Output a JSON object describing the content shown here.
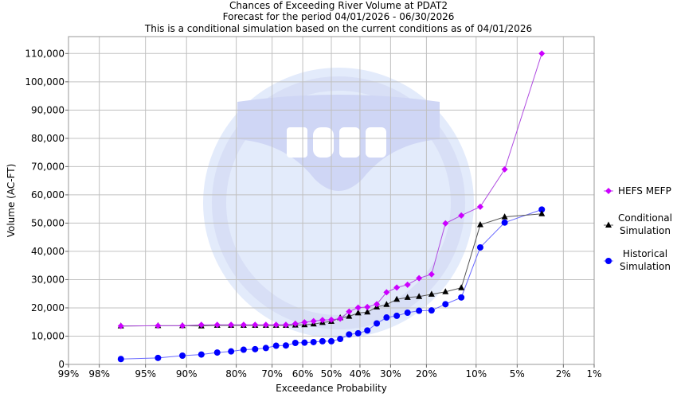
{
  "chart_data": {
    "type": "line",
    "title": "Chances of Exceeding River Volume at PDAT2",
    "subtitle": "Forecast for the period 04/01/2026 - 06/30/2026",
    "subtitle2": "This is a conditional simulation based on the current conditions as of 04/01/2026",
    "xlabel": "Exceedance Probability",
    "ylabel": "Volume (AC-FT)",
    "x_scale": "normal-probability",
    "x_ticks": [
      99,
      98,
      95,
      90,
      80,
      70,
      60,
      50,
      40,
      30,
      20,
      10,
      5,
      2,
      1
    ],
    "x_tick_labels": [
      "99%",
      "98%",
      "95%",
      "90%",
      "80%",
      "70%",
      "60%",
      "50%",
      "40%",
      "30%",
      "20%",
      "10%",
      "5%",
      "2%",
      "1%"
    ],
    "ylim": [
      0,
      116000
    ],
    "y_ticks": [
      0,
      10000,
      20000,
      30000,
      40000,
      50000,
      60000,
      70000,
      80000,
      90000,
      100000,
      110000
    ],
    "y_tick_labels": [
      "0",
      "10,000",
      "20,000",
      "30,000",
      "40,000",
      "50,000",
      "60,000",
      "70,000",
      "80,000",
      "90,000",
      "100,000",
      "110,000"
    ],
    "grid": true,
    "legend_position": "right",
    "x": [
      96.875,
      93.75,
      90.625,
      87.5,
      84.375,
      81.25,
      78.125,
      75,
      71.875,
      68.75,
      65.625,
      62.5,
      59.375,
      56.25,
      53.125,
      50,
      46.875,
      43.75,
      40.625,
      37.5,
      34.375,
      31.25,
      28.125,
      25,
      21.875,
      18.75,
      15.625,
      12.5,
      9.375,
      6.25,
      3.125
    ],
    "series": [
      {
        "name": "HEFS MEFP",
        "color": "#cc00ff",
        "line_color": "#b04ce0",
        "marker": "diamond",
        "values": [
          13600,
          13700,
          13700,
          14000,
          14000,
          14000,
          14000,
          14000,
          14000,
          14000,
          14000,
          14400,
          14900,
          15300,
          15700,
          15800,
          16200,
          18700,
          20100,
          20300,
          21300,
          25500,
          27200,
          28200,
          30500,
          31900,
          49900,
          52700,
          55800,
          69000,
          110000
        ]
      },
      {
        "name": "Conditional Simulation",
        "name_lines": [
          "Conditional",
          "Simulation"
        ],
        "color": "#000000",
        "line_color": "#555555",
        "marker": "triangle",
        "values": [
          13600,
          13700,
          13700,
          13600,
          13800,
          13800,
          13800,
          13800,
          13800,
          13800,
          13800,
          13900,
          14000,
          14300,
          14800,
          15200,
          16500,
          17000,
          18200,
          18500,
          20300,
          21200,
          23000,
          23700,
          24000,
          24800,
          25700,
          27100,
          49400,
          52200,
          53300
        ]
      },
      {
        "name": "Historical Simulation",
        "name_lines": [
          "Historical",
          "Simulation"
        ],
        "color": "#0000ff",
        "line_color": "#6a6aff",
        "marker": "circle",
        "values": [
          1900,
          2300,
          3100,
          3500,
          4200,
          4600,
          5200,
          5400,
          5800,
          6600,
          6700,
          7600,
          7700,
          7900,
          8200,
          8200,
          9000,
          10600,
          11000,
          12000,
          14500,
          16600,
          17200,
          18300,
          19000,
          19100,
          21300,
          23700,
          41400,
          50200,
          54800
        ]
      }
    ]
  },
  "watermark": {
    "logo_text": "NOAA",
    "ring_top": "NATIONAL OCEANIC AND ATMOSPHERIC ADMINISTRATION",
    "ring_bottom": "U.S. DEPARTMENT OF COMMERCE"
  }
}
